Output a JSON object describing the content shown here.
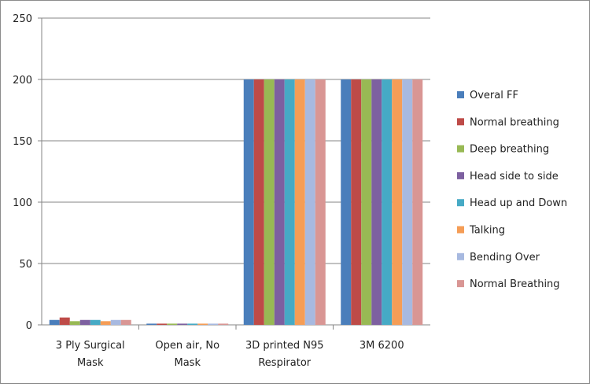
{
  "chart_data": {
    "type": "bar",
    "categories": [
      [
        "3 Ply Surgical",
        "Mask"
      ],
      [
        "Open air, No",
        "Mask"
      ],
      [
        "3D printed N95",
        "Respirator"
      ],
      [
        "3M 6200"
      ]
    ],
    "series": [
      {
        "name": "Overal FF",
        "color": "#4a7ebb",
        "values": [
          4,
          1,
          200,
          200
        ]
      },
      {
        "name": "Normal breathing",
        "color": "#be4b48",
        "values": [
          6,
          1,
          200,
          200
        ]
      },
      {
        "name": "Deep breathing",
        "color": "#98b954",
        "values": [
          3,
          1,
          200,
          200
        ]
      },
      {
        "name": "Head side to side",
        "color": "#7d60a0",
        "values": [
          4,
          1,
          200,
          200
        ]
      },
      {
        "name": "Head up and Down",
        "color": "#46aac5",
        "values": [
          4,
          1,
          200,
          200
        ]
      },
      {
        "name": "Talking",
        "color": "#f59d56",
        "values": [
          3,
          1,
          200,
          200
        ]
      },
      {
        "name": "Bending Over",
        "color": "#a7b9e0",
        "values": [
          4,
          1,
          200,
          200
        ]
      },
      {
        "name": "Normal Breathing",
        "color": "#d99694",
        "values": [
          4,
          1,
          200,
          200
        ]
      }
    ],
    "ylim": [
      0,
      250
    ],
    "yticks": [
      0,
      50,
      100,
      150,
      200,
      250
    ],
    "grid": true,
    "legend": "right"
  }
}
